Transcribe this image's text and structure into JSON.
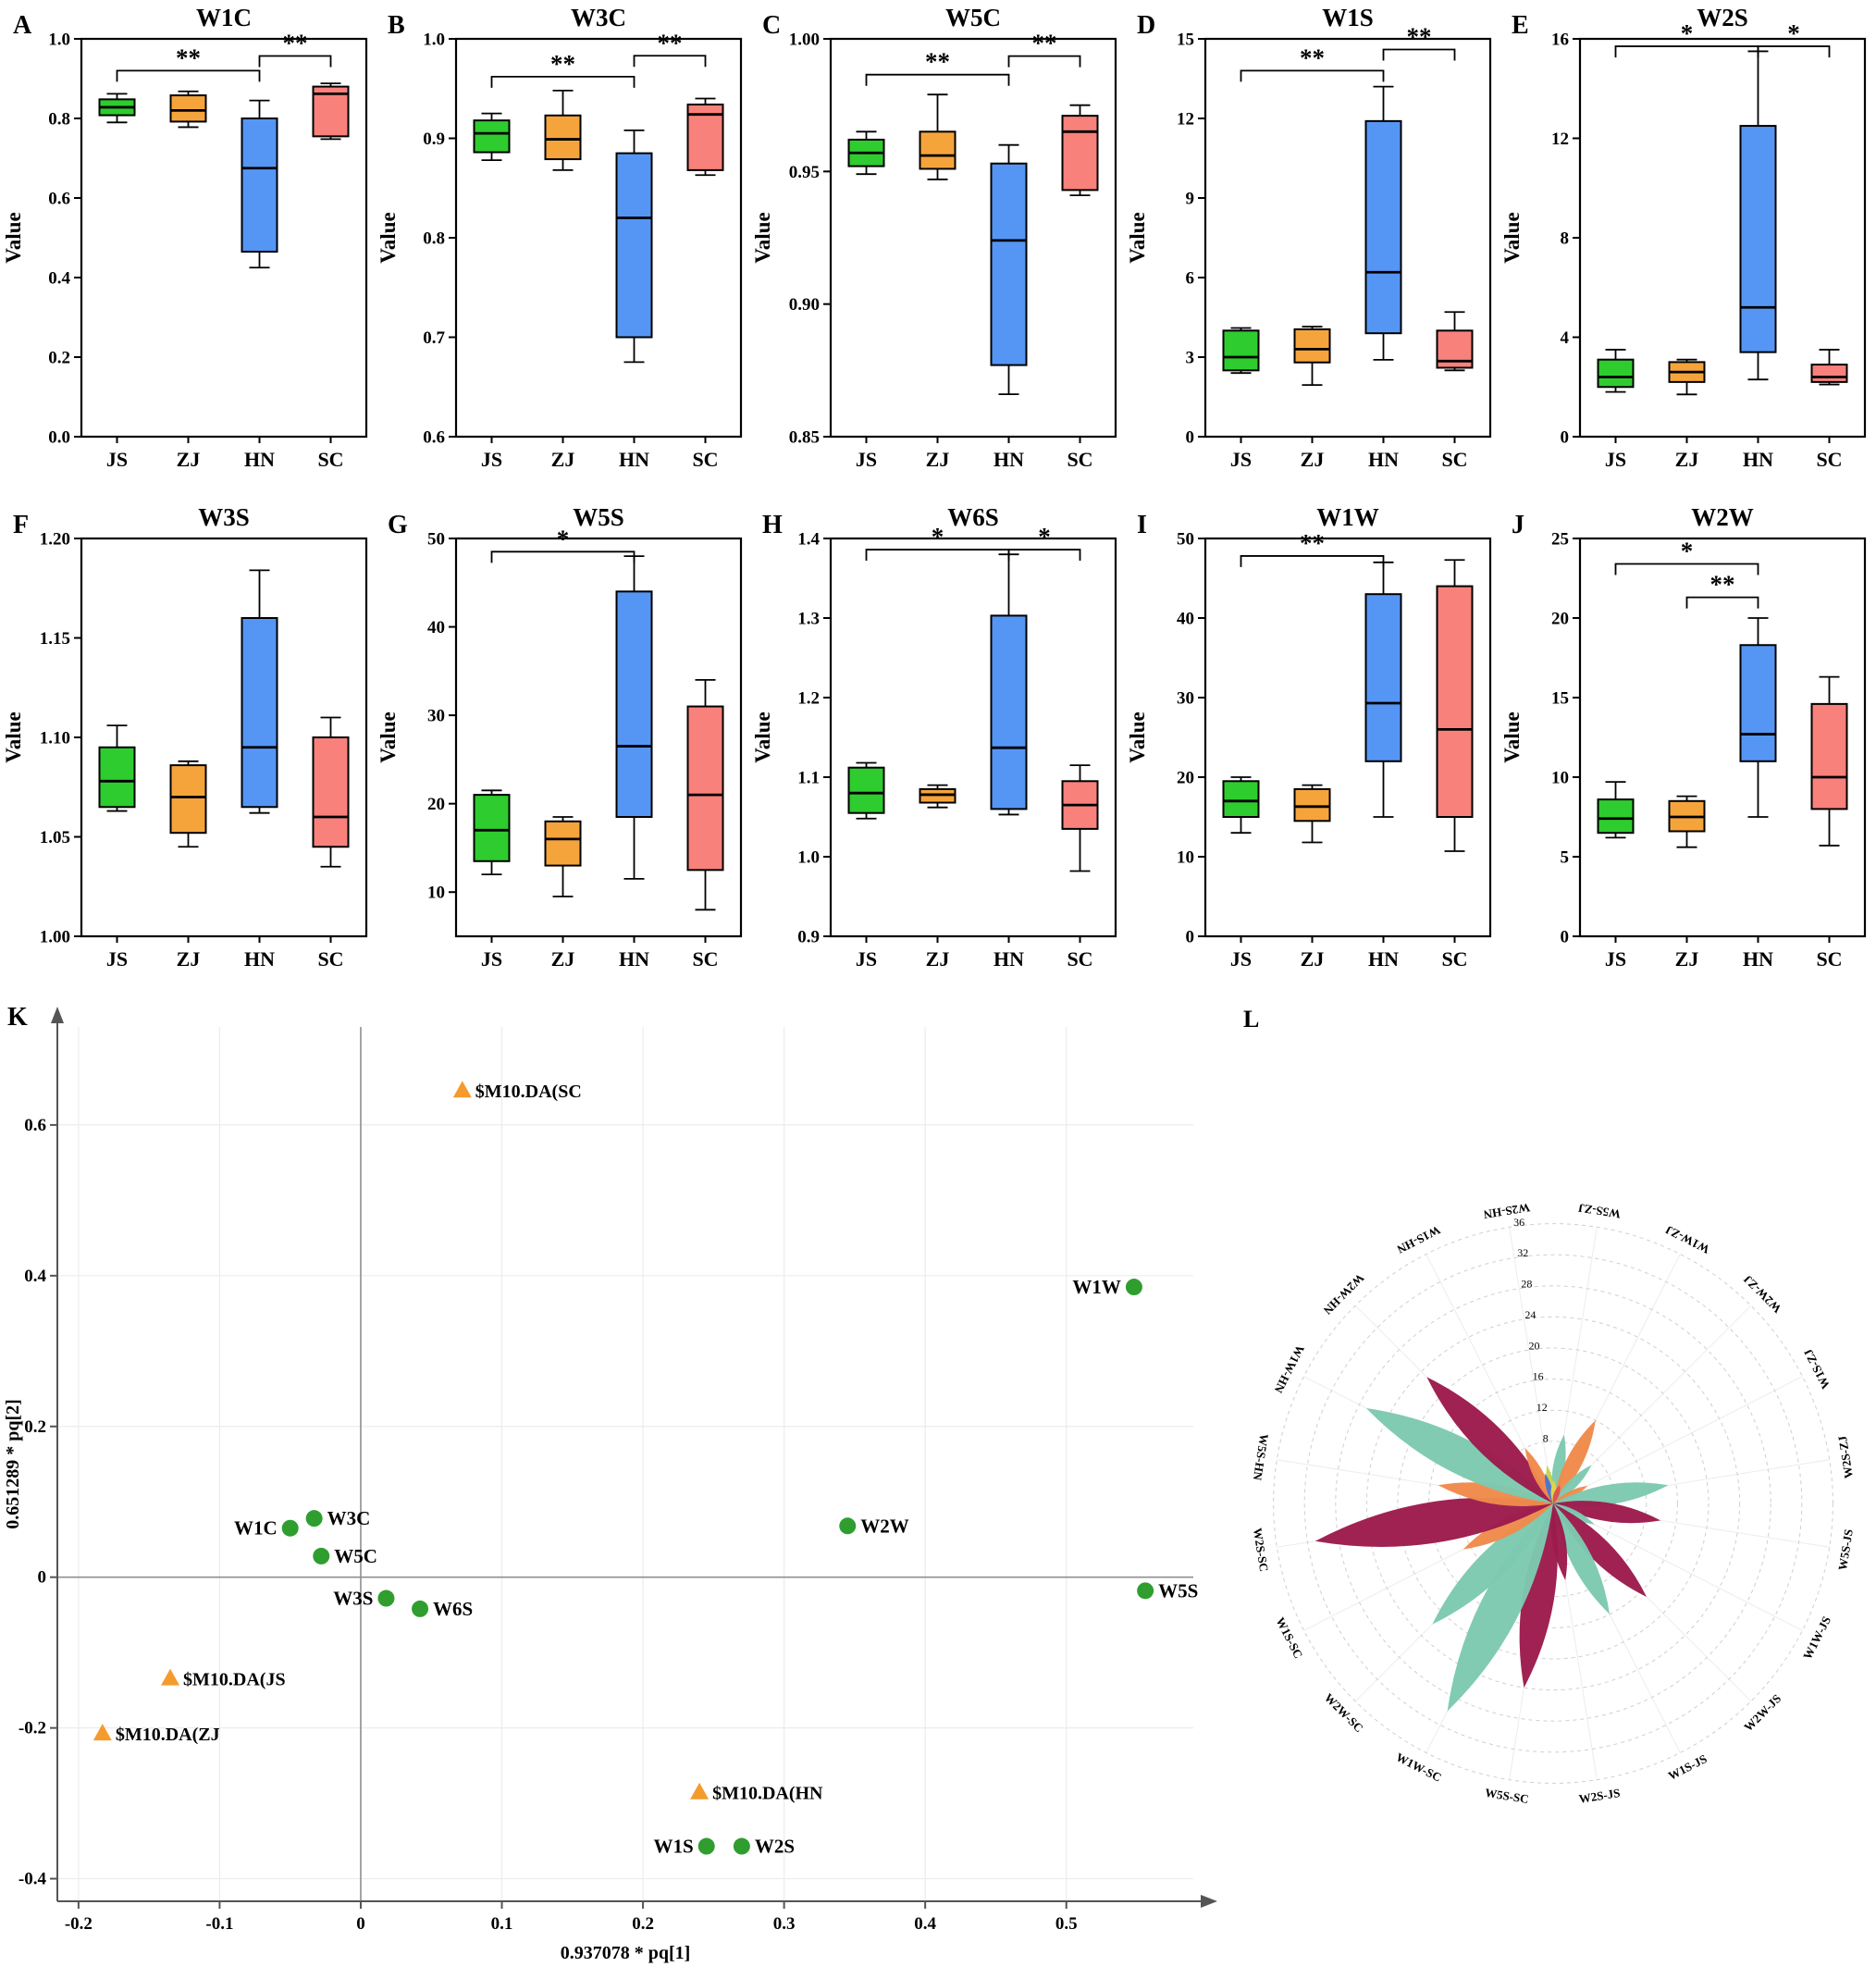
{
  "figure": {
    "background": "#ffffff"
  },
  "chart_data": {
    "type": "multi-panel",
    "categories": [
      "JS",
      "ZJ",
      "HN",
      "SC"
    ],
    "box_colors": [
      "#2ecc2e",
      "#f5a43c",
      "#5596f5",
      "#f8817b"
    ],
    "box_panels": [
      {
        "letter": "A",
        "title": "W1C",
        "ylabel": "Value",
        "ylim": [
          0,
          1.0
        ],
        "yticks": [
          0,
          0.2,
          0.4,
          0.6,
          0.8,
          1.0
        ],
        "dec": 1,
        "boxes": [
          {
            "low": 0.79,
            "q1": 0.808,
            "med": 0.828,
            "q3": 0.848,
            "high": 0.862
          },
          {
            "low": 0.778,
            "q1": 0.792,
            "med": 0.82,
            "q3": 0.858,
            "high": 0.868
          },
          {
            "low": 0.425,
            "q1": 0.465,
            "med": 0.675,
            "q3": 0.8,
            "high": 0.845
          },
          {
            "low": 0.748,
            "q1": 0.755,
            "med": 0.862,
            "q3": 0.88,
            "high": 0.888
          }
        ],
        "sig": [
          {
            "a": 0,
            "b": 2,
            "y": 0.92,
            "label": "**"
          },
          {
            "a": 2,
            "b": 3,
            "y": 0.957,
            "label": "**"
          }
        ]
      },
      {
        "letter": "B",
        "title": "W3C",
        "ylabel": "Value",
        "ylim": [
          0.6,
          1.0
        ],
        "yticks": [
          0.6,
          0.7,
          0.8,
          0.9,
          1.0
        ],
        "dec": 1,
        "boxes": [
          {
            "low": 0.878,
            "q1": 0.886,
            "med": 0.905,
            "q3": 0.918,
            "high": 0.925
          },
          {
            "low": 0.868,
            "q1": 0.879,
            "med": 0.899,
            "q3": 0.923,
            "high": 0.948
          },
          {
            "low": 0.675,
            "q1": 0.7,
            "med": 0.82,
            "q3": 0.885,
            "high": 0.908
          },
          {
            "low": 0.863,
            "q1": 0.868,
            "med": 0.924,
            "q3": 0.934,
            "high": 0.94
          }
        ],
        "sig": [
          {
            "a": 0,
            "b": 2,
            "y": 0.962,
            "label": "**"
          },
          {
            "a": 2,
            "b": 3,
            "y": 0.983,
            "label": "**"
          }
        ]
      },
      {
        "letter": "C",
        "title": "W5C",
        "ylabel": "Value",
        "ylim": [
          0.85,
          1.0
        ],
        "yticks": [
          0.85,
          0.9,
          0.95,
          1.0
        ],
        "dec": 2,
        "boxes": [
          {
            "low": 0.949,
            "q1": 0.952,
            "med": 0.957,
            "q3": 0.962,
            "high": 0.965
          },
          {
            "low": 0.947,
            "q1": 0.951,
            "med": 0.956,
            "q3": 0.965,
            "high": 0.979
          },
          {
            "low": 0.866,
            "q1": 0.877,
            "med": 0.924,
            "q3": 0.953,
            "high": 0.96
          },
          {
            "low": 0.941,
            "q1": 0.943,
            "med": 0.965,
            "q3": 0.971,
            "high": 0.975
          }
        ],
        "sig": [
          {
            "a": 0,
            "b": 2,
            "y": 0.9865,
            "label": "**"
          },
          {
            "a": 2,
            "b": 3,
            "y": 0.9935,
            "label": "**"
          }
        ]
      },
      {
        "letter": "D",
        "title": "W1S",
        "ylabel": "Value",
        "ylim": [
          0,
          15
        ],
        "yticks": [
          0,
          3,
          6,
          9,
          12,
          15
        ],
        "dec": 0,
        "boxes": [
          {
            "low": 2.4,
            "q1": 2.5,
            "med": 3.0,
            "q3": 4.0,
            "high": 4.1
          },
          {
            "low": 1.95,
            "q1": 2.8,
            "med": 3.3,
            "q3": 4.05,
            "high": 4.15
          },
          {
            "low": 2.9,
            "q1": 3.9,
            "med": 6.2,
            "q3": 11.9,
            "high": 13.2
          },
          {
            "low": 2.5,
            "q1": 2.6,
            "med": 2.85,
            "q3": 4.0,
            "high": 4.7
          }
        ],
        "sig": [
          {
            "a": 0,
            "b": 2,
            "y": 13.8,
            "label": "**"
          },
          {
            "a": 2,
            "b": 3,
            "y": 14.6,
            "label": "**"
          }
        ]
      },
      {
        "letter": "E",
        "title": "W2S",
        "ylabel": "Value",
        "ylim": [
          0,
          16
        ],
        "yticks": [
          0,
          4,
          8,
          12,
          16
        ],
        "dec": 0,
        "boxes": [
          {
            "low": 1.8,
            "q1": 2.0,
            "med": 2.4,
            "q3": 3.1,
            "high": 3.5
          },
          {
            "low": 1.7,
            "q1": 2.2,
            "med": 2.6,
            "q3": 3.0,
            "high": 3.1
          },
          {
            "low": 2.3,
            "q1": 3.4,
            "med": 5.2,
            "q3": 12.5,
            "high": 15.5
          },
          {
            "low": 2.1,
            "q1": 2.2,
            "med": 2.4,
            "q3": 2.9,
            "high": 3.5
          }
        ],
        "sig": [
          {
            "a": 0,
            "b": 2,
            "y": 15.7,
            "label": "*"
          },
          {
            "a": 2,
            "b": 3,
            "y": 15.7,
            "label": "*"
          }
        ]
      },
      {
        "letter": "F",
        "title": "W3S",
        "ylabel": "Value",
        "ylim": [
          1.0,
          1.2
        ],
        "yticks": [
          1.0,
          1.05,
          1.1,
          1.15,
          1.2
        ],
        "dec": 2,
        "boxes": [
          {
            "low": 1.063,
            "q1": 1.065,
            "med": 1.078,
            "q3": 1.095,
            "high": 1.106
          },
          {
            "low": 1.045,
            "q1": 1.052,
            "med": 1.07,
            "q3": 1.086,
            "high": 1.088
          },
          {
            "low": 1.062,
            "q1": 1.065,
            "med": 1.095,
            "q3": 1.16,
            "high": 1.184
          },
          {
            "low": 1.035,
            "q1": 1.045,
            "med": 1.06,
            "q3": 1.1,
            "high": 1.11
          }
        ],
        "sig": []
      },
      {
        "letter": "G",
        "title": "W5S",
        "ylabel": "Value",
        "ylim": [
          5,
          50
        ],
        "yticks": [
          10,
          20,
          30,
          40,
          50
        ],
        "dec": 0,
        "boxes": [
          {
            "low": 12.0,
            "q1": 13.5,
            "med": 17.0,
            "q3": 21.0,
            "high": 21.5
          },
          {
            "low": 9.5,
            "q1": 13.0,
            "med": 16.0,
            "q3": 18.0,
            "high": 18.5
          },
          {
            "low": 11.5,
            "q1": 18.5,
            "med": 26.5,
            "q3": 44.0,
            "high": 48.0
          },
          {
            "low": 8.0,
            "q1": 12.5,
            "med": 21.0,
            "q3": 31.0,
            "high": 34.0
          }
        ],
        "sig": [
          {
            "a": 0,
            "b": 2,
            "y": 48.5,
            "label": "*"
          }
        ]
      },
      {
        "letter": "H",
        "title": "W6S",
        "ylabel": "Value",
        "ylim": [
          0.9,
          1.4
        ],
        "yticks": [
          0.9,
          1.0,
          1.1,
          1.2,
          1.3,
          1.4
        ],
        "dec": 1,
        "boxes": [
          {
            "low": 1.048,
            "q1": 1.055,
            "med": 1.08,
            "q3": 1.112,
            "high": 1.118
          },
          {
            "low": 1.062,
            "q1": 1.068,
            "med": 1.078,
            "q3": 1.085,
            "high": 1.09
          },
          {
            "low": 1.053,
            "q1": 1.06,
            "med": 1.137,
            "q3": 1.303,
            "high": 1.38
          },
          {
            "low": 0.982,
            "q1": 1.035,
            "med": 1.065,
            "q3": 1.095,
            "high": 1.115
          }
        ],
        "sig": [
          {
            "a": 0,
            "b": 2,
            "y": 1.386,
            "label": "*"
          },
          {
            "a": 2,
            "b": 3,
            "y": 1.386,
            "label": "*"
          }
        ]
      },
      {
        "letter": "I",
        "title": "W1W",
        "ylabel": "Value",
        "ylim": [
          0,
          50
        ],
        "yticks": [
          0,
          10,
          20,
          30,
          40,
          50
        ],
        "dec": 0,
        "boxes": [
          {
            "low": 13.0,
            "q1": 15.0,
            "med": 17.0,
            "q3": 19.5,
            "high": 20.0
          },
          {
            "low": 11.8,
            "q1": 14.5,
            "med": 16.3,
            "q3": 18.5,
            "high": 19.0
          },
          {
            "low": 15.0,
            "q1": 22.0,
            "med": 29.3,
            "q3": 43.0,
            "high": 47.0
          },
          {
            "low": 10.7,
            "q1": 15.0,
            "med": 26.0,
            "q3": 44.0,
            "high": 47.3
          }
        ],
        "sig": [
          {
            "a": 0,
            "b": 2,
            "y": 47.8,
            "label": "**"
          }
        ]
      },
      {
        "letter": "J",
        "title": "W2W",
        "ylabel": "Value",
        "ylim": [
          0,
          25
        ],
        "yticks": [
          0,
          5,
          10,
          15,
          20,
          25
        ],
        "dec": 0,
        "boxes": [
          {
            "low": 6.2,
            "q1": 6.5,
            "med": 7.4,
            "q3": 8.6,
            "high": 9.7
          },
          {
            "low": 5.6,
            "q1": 6.6,
            "med": 7.5,
            "q3": 8.5,
            "high": 8.8
          },
          {
            "low": 7.5,
            "q1": 11.0,
            "med": 12.7,
            "q3": 18.3,
            "high": 20.0
          },
          {
            "low": 5.7,
            "q1": 8.0,
            "med": 10.0,
            "q3": 14.6,
            "high": 16.3
          }
        ],
        "sig": [
          {
            "a": 0,
            "b": 2,
            "y": 23.4,
            "label": "*"
          },
          {
            "a": 1,
            "b": 2,
            "y": 21.3,
            "label": "**"
          }
        ]
      }
    ],
    "scatter": {
      "letter": "K",
      "xlabel": "0.937078 * pq[1]",
      "ylabel": "0.651289 * pq[2]",
      "xlim": [
        -0.215,
        0.59
      ],
      "ylim": [
        -0.43,
        0.73
      ],
      "xticks": [
        -0.2,
        -0.1,
        0,
        0.1,
        0.2,
        0.3,
        0.4,
        0.5
      ],
      "xtick_labels": [
        "-0.2",
        "-0.1",
        "0",
        "0.1",
        "0.2",
        "0.3",
        "0.4",
        "0.5"
      ],
      "yticks": [
        -0.4,
        -0.2,
        0,
        0.2,
        0.4,
        0.6
      ],
      "ytick_labels": [
        "-0.4",
        "-0.2",
        "0",
        "0.2",
        "0.4",
        "0.6"
      ],
      "point_color": "#2f9e2f",
      "point_label_color": "#1e6b1e",
      "triangle_color": "#f59b2d",
      "points": [
        {
          "label": "W1C",
          "x": -0.05,
          "y": 0.065,
          "side": "left"
        },
        {
          "label": "W3C",
          "x": -0.033,
          "y": 0.078,
          "side": "right"
        },
        {
          "label": "W5C",
          "x": -0.028,
          "y": 0.028,
          "side": "right"
        },
        {
          "label": "W3S",
          "x": 0.018,
          "y": -0.028,
          "side": "left"
        },
        {
          "label": "W6S",
          "x": 0.042,
          "y": -0.042,
          "side": "right"
        },
        {
          "label": "W1S",
          "x": 0.245,
          "y": -0.357,
          "side": "left"
        },
        {
          "label": "W2S",
          "x": 0.27,
          "y": -0.357,
          "side": "right"
        },
        {
          "label": "W2W",
          "x": 0.345,
          "y": 0.068,
          "side": "right"
        },
        {
          "label": "W1W",
          "x": 0.548,
          "y": 0.385,
          "side": "left"
        },
        {
          "label": "W5S",
          "x": 0.556,
          "y": -0.018,
          "side": "right"
        }
      ],
      "triangles": [
        {
          "label": "$M10.DA(SC",
          "x": 0.072,
          "y": 0.645,
          "side": "right"
        },
        {
          "label": "$M10.DA(JS",
          "x": -0.135,
          "y": -0.135,
          "side": "right"
        },
        {
          "label": "$M10.DA(ZJ",
          "x": -0.183,
          "y": -0.208,
          "side": "right"
        },
        {
          "label": "$M10.DA(HN",
          "x": 0.24,
          "y": -0.286,
          "side": "right"
        }
      ]
    },
    "rose": {
      "letter": "L",
      "rmax": 36,
      "rticks": [
        8,
        12,
        16,
        20,
        24,
        28,
        32,
        36
      ],
      "petals": [
        {
          "label": "W5S-ZJ",
          "angle": 81,
          "len": 9,
          "color": "#7dc9af"
        },
        {
          "label": "W1W-ZJ",
          "angle": 63,
          "len": 12,
          "color": "#f08a4b"
        },
        {
          "label": "W2W-ZJ",
          "angle": 45,
          "len": 7,
          "color": "#7dc9af"
        },
        {
          "label": "W1S-ZJ",
          "angle": 27,
          "len": 5,
          "color": "#f08a4b"
        },
        {
          "label": "W2S-ZJ",
          "angle": 9,
          "len": 15,
          "color": "#7dc9af"
        },
        {
          "label": "W5S-JS",
          "angle": -9,
          "len": 14,
          "color": "#9c1b4d"
        },
        {
          "label": "W1W-JS",
          "angle": -27,
          "len": 6,
          "color": "#7dc9af"
        },
        {
          "label": "W2W-JS",
          "angle": -45,
          "len": 17,
          "color": "#9c1b4d"
        },
        {
          "label": "W1S-JS",
          "angle": -63,
          "len": 16,
          "color": "#7dc9af"
        },
        {
          "label": "W2S-JS",
          "angle": -81,
          "len": 10,
          "color": "#9c1b4d"
        },
        {
          "label": "W5S-SC",
          "angle": -99,
          "len": 24,
          "color": "#9c1b4d"
        },
        {
          "label": "W1W-SC",
          "angle": -117,
          "len": 30,
          "color": "#7dc9af"
        },
        {
          "label": "W2W-SC",
          "angle": -135,
          "len": 22,
          "color": "#7dc9af"
        },
        {
          "label": "W1S-SC",
          "angle": -153,
          "len": 13,
          "color": "#f08a4b"
        },
        {
          "label": "W2S-SC",
          "angle": -171,
          "len": 31,
          "color": "#9c1b4d"
        },
        {
          "label": "W5S-HN",
          "angle": 171,
          "len": 15,
          "color": "#f08a4b"
        },
        {
          "label": "W1W-HN",
          "angle": 153,
          "len": 27,
          "color": "#7dc9af"
        },
        {
          "label": "W2W-HN",
          "angle": 135,
          "len": 23,
          "color": "#9c1b4d"
        },
        {
          "label": "W1S-HN",
          "angle": 117,
          "len": 8,
          "color": "#f08a4b"
        },
        {
          "label": "W2S-HN",
          "angle": 99,
          "len": 5,
          "color": "#c3d545"
        },
        {
          "label": "",
          "angle": 105,
          "len": 4,
          "color": "#4a72d4"
        },
        {
          "label": "",
          "angle": 88,
          "len": 3,
          "color": "#e0d44a"
        },
        {
          "label": "",
          "angle": 70,
          "len": 2.5,
          "color": "#e05050"
        }
      ]
    }
  }
}
